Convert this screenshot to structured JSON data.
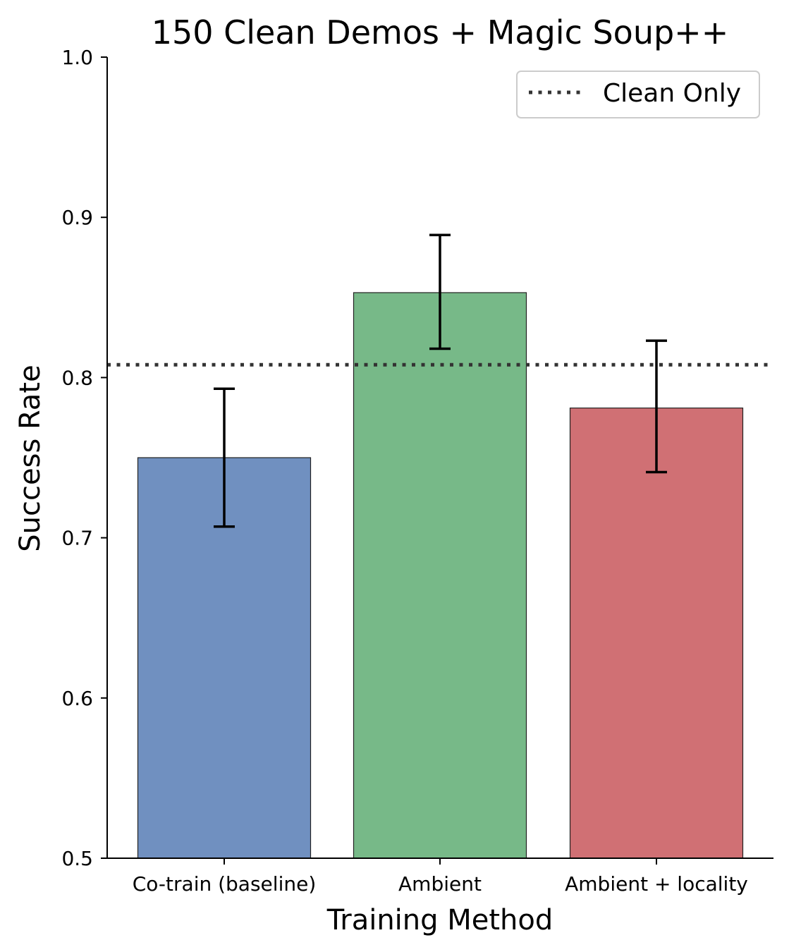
{
  "chart_data": {
    "type": "bar",
    "title": "150 Clean Demos + Magic Soup++",
    "xlabel": "Training Method",
    "ylabel": "Success Rate",
    "ylim": [
      0.5,
      1.0
    ],
    "yticks": [
      0.5,
      0.6,
      0.7,
      0.8,
      0.9,
      1.0
    ],
    "ytick_labels": [
      "0.5",
      "0.6",
      "0.7",
      "0.8",
      "0.9",
      "1.0"
    ],
    "categories": [
      "Co-train (baseline)",
      "Ambient",
      "Ambient + locality"
    ],
    "values": [
      0.75,
      0.853,
      0.781
    ],
    "error_low": [
      0.707,
      0.818,
      0.741
    ],
    "error_high": [
      0.793,
      0.889,
      0.823
    ],
    "colors": [
      "#7090c0",
      "#77b988",
      "#d07074"
    ],
    "reference_line": {
      "name": "Clean Only",
      "value": 0.808,
      "color": "#333333",
      "style": "dotted"
    },
    "legend_placement": "top-right",
    "grid": false
  }
}
